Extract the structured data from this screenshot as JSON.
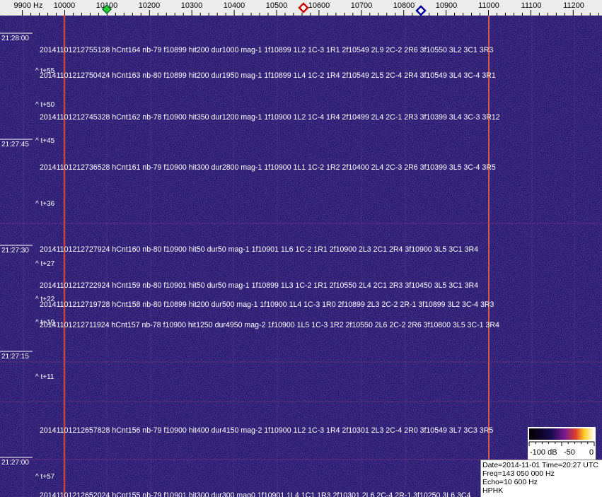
{
  "frequency_axis": {
    "labels": [
      "9900 Hz",
      "10000",
      "10100",
      "10200",
      "10300",
      "10400",
      "10500",
      "10600",
      "10700",
      "10800",
      "10900",
      "11000",
      "11100",
      "11200"
    ]
  },
  "time_labels": [
    "21:28:00",
    "21:27:45",
    "21:27:30",
    "21:27:15",
    "21:27:00"
  ],
  "offsets": [
    "^ t+55",
    "^ t+50",
    "^ t+45",
    "^ t+36",
    "^ t+27",
    "^ t+22",
    "^ t+19",
    "^ t+11",
    "^ t+57"
  ],
  "detections": [
    "20141101212755128 hCnt164 nb-79 f10899 hit200 dur1000 mag-1 1f10899 1L2 1C-3 1R1 2f10549 2L9 2C-2 2R6 3f10550 3L2 3C1 3R3",
    "20141101212750424 hCnt163 nb-80 f10899 hit200 dur1950 mag-1 1f10899 1L4 1C-2 1R4 2f10549 2L5 2C-4 2R4 3f10549 3L4 3C-4 3R1",
    "20141101212745328 hCnt162 nb-78 f10900 hit350 dur1200 mag-1 1f10900 1L2 1C-4 1R4 2f10499 2L4 2C-1 2R3 3f10399 3L4 3C-3 3R12",
    "20141101212736528 hCnt161 nb-79 f10900 hit300 dur2800 mag-1 1f10900 1L1 1C-2 1R2 2f10400 2L4 2C-3 2R6 3f10399 3L5 3C-4 3R5",
    "20141101212727924 hCnt160 nb-80 f10900 hit50 dur50 mag-1 1f10901 1L6 1C-2 1R1 2f10900 2L3 2C1 2R4 3f10900 3L5 3C1 3R4",
    "20141101212722924 hCnt159 nb-80 f10901 hit50 dur50 mag-1 1f10899 1L3 1C-2 1R1 2f10550 2L4 2C1 2R3 3f10450 3L5 3C1 3R4",
    "20141101212719728 hCnt158 nb-80 f10899 hit200 dur500 mag-1 1f10900 1L4 1C-3 1R0 2f10899 2L3 2C-2 2R-1 3f10899 3L2 3C-4 3R3",
    "20141101212711924 hCnt157 nb-78 f10900 hit1250 dur4950 mag-2 1f10900 1L5 1C-3 1R2 2f10550 2L6 2C-2 2R6 3f10800 3L5 3C-1 3R4",
    "20141101212657828 hCnt156 nb-79 f10900 hit400 dur4150 mag-2 1f10900 1L2 1C-3 1R4 2f10301 2L3 2C-4 2R0 3f10549 3L7 3C3 3R5",
    "20141101212652024 hCnt155 nb-79 f10901 hit300 dur300 mag0 1f10901 1L4 1C1 1R3 2f10301 2L6 2C-4 2R-1 3f10250 3L6 3C4"
  ],
  "colorbar": {
    "labels": [
      "-100 dB",
      "-50",
      "0"
    ]
  },
  "info": [
    "Date=2014-11-01 Time=20:27 UTC",
    "Freq=143 050 000 Hz",
    "Echo=10 600 Hz",
    "HPHK"
  ]
}
